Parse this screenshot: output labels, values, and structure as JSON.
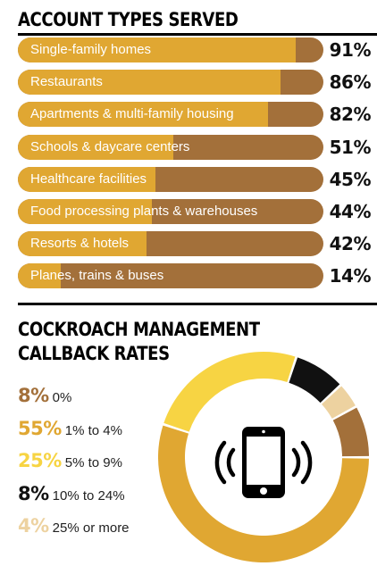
{
  "colors": {
    "track": "#a3703a",
    "fill": "#e0a732"
  },
  "chart_data": [
    {
      "type": "bar",
      "title": "ACCOUNT TYPES SERVED",
      "categories": [
        "Single-family homes",
        "Restaurants",
        "Apartments & multi-family housing",
        "Schools & daycare centers",
        "Healthcare facilities",
        "Food processing plants & warehouses",
        "Resorts & hotels",
        "Planes, trains & buses"
      ],
      "values": [
        91,
        86,
        82,
        51,
        45,
        44,
        42,
        14
      ],
      "value_labels": [
        "91%",
        "86%",
        "82%",
        "51%",
        "45%",
        "44%",
        "42%",
        "14%"
      ],
      "ylim": [
        0,
        100
      ]
    },
    {
      "type": "pie",
      "title": "COCKROACH MANAGEMENT CALLBACK RATES",
      "categories": [
        "0%",
        "1% to 4%",
        "5% to 9%",
        "10% to 24%",
        "25% or more"
      ],
      "values": [
        8,
        55,
        25,
        8,
        4
      ],
      "value_labels": [
        "8%",
        "55%",
        "25%",
        "8%",
        "4%"
      ],
      "colors": [
        "#a3703a",
        "#e0a732",
        "#f7d443",
        "#111111",
        "#edd2a0"
      ],
      "icon": "phone-icon"
    }
  ]
}
